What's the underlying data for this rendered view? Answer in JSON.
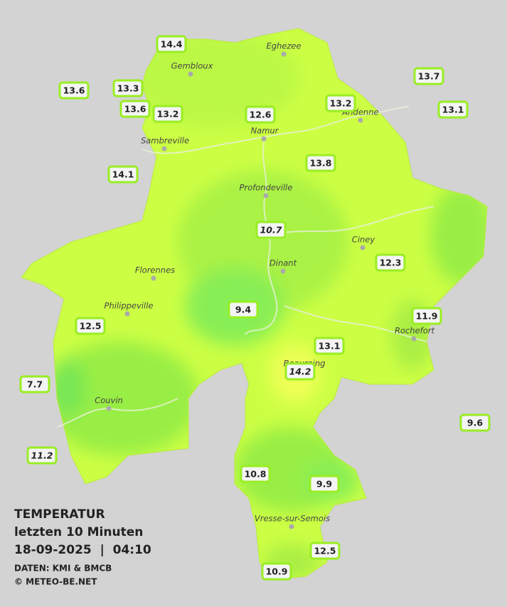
{
  "map": {
    "stations": [
      "14.4",
      "13.6",
      "13.3",
      "13.6",
      "13.2",
      "12.6",
      "13.2",
      "13.7",
      "13.1",
      "13.8",
      "14.1",
      "10.7",
      "12.3",
      "9.4",
      "12.5",
      "11.9",
      "13.1",
      "14.2",
      "7.7",
      "9.6",
      "11.2",
      "10.8",
      "9.9",
      "12.5",
      "10.9"
    ],
    "cities": [
      "Eghezee",
      "Gembloux",
      "Andenne",
      "Namur",
      "Sambreville",
      "Profondeville",
      "Ciney",
      "Dinant",
      "Florennes",
      "Philippeville",
      "Rochefort",
      "Beauraing",
      "Couvin",
      "Vresse-sur-Semois"
    ]
  },
  "info": {
    "title": "TEMPERATUR",
    "subtitle": "letzten 10 Minuten",
    "datetime": "18-09-2025  |  04:10",
    "source": "DATEN: KMI & BMCB",
    "copyright": "© METEO-BE.NET"
  }
}
